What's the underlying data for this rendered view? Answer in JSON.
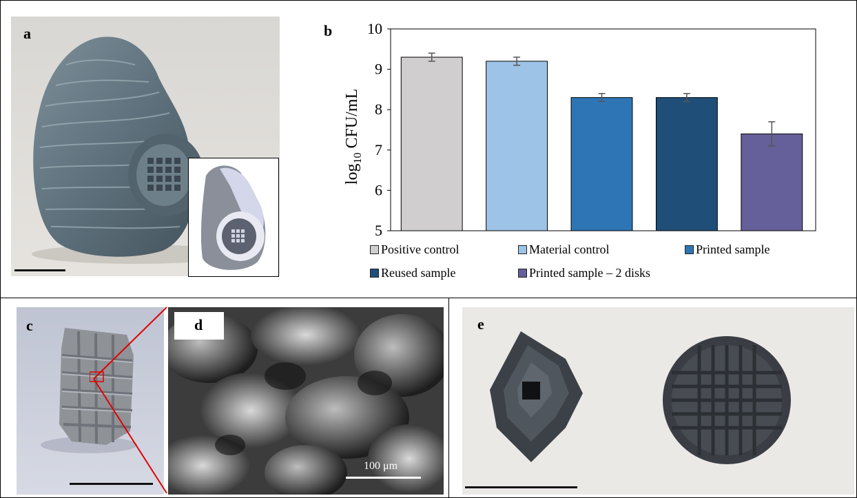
{
  "panels": {
    "a": {
      "label": "a"
    },
    "b": {
      "label": "b"
    },
    "c": {
      "label": "c"
    },
    "d": {
      "label": "d",
      "scale_text": "100 μm"
    },
    "e": {
      "label": "e"
    }
  },
  "chart_data": {
    "type": "bar",
    "categories": [
      "Positive control",
      "Material control",
      "Printed sample",
      "Reused sample",
      "Printed sample – 2 disks"
    ],
    "values": [
      9.3,
      9.2,
      8.3,
      8.3,
      7.4
    ],
    "errors": [
      0.1,
      0.1,
      0.1,
      0.1,
      0.3
    ],
    "colors": [
      "#d0cece",
      "#9dc3e6",
      "#2e75b6",
      "#1f4e79",
      "#65609a"
    ],
    "ylabel_main": "log",
    "ylabel_sub": "10",
    "ylabel_rest": " CFU/mL",
    "ylim": [
      5,
      10
    ],
    "yticks": [
      5,
      6,
      7,
      8,
      9,
      10
    ],
    "grid": false,
    "legend_position": "bottom"
  },
  "legend": {
    "items": [
      "Positive control",
      "Material control",
      "Printed sample",
      "Reused sample",
      "Printed sample – 2 disks"
    ]
  }
}
